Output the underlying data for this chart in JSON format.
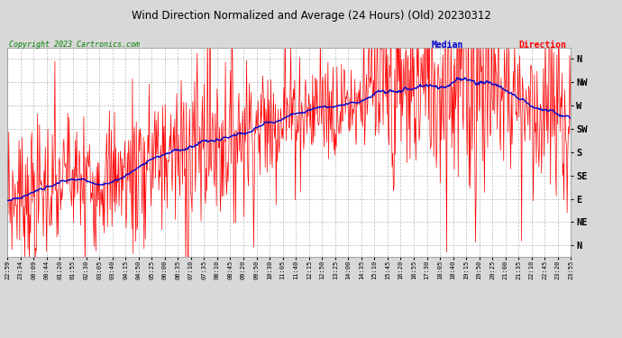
{
  "title": "Wind Direction Normalized and Average (24 Hours) (Old) 20230312",
  "copyright": "Copyright 2023 Cartronics.com",
  "legend_median": "Median",
  "legend_direction": "Direction",
  "bg_color": "#d8d8d8",
  "plot_bg_color": "#ffffff",
  "direction_color": "#ff0000",
  "median_color": "#0000cc",
  "title_color": "#000000",
  "copyright_color": "#008000",
  "legend_median_color": "#0000cc",
  "legend_direction_color": "#ff0000",
  "ytick_labels": [
    "N",
    "NE",
    "E",
    "SE",
    "S",
    "SW",
    "W",
    "NW",
    "N"
  ],
  "ytick_values": [
    0,
    45,
    90,
    135,
    180,
    225,
    270,
    315,
    360
  ],
  "ylim": [
    -22,
    382
  ],
  "xtick_labels": [
    "22:59",
    "23:34",
    "00:09",
    "00:44",
    "01:20",
    "01:55",
    "02:30",
    "03:05",
    "03:40",
    "04:15",
    "04:50",
    "05:25",
    "06:00",
    "06:35",
    "07:10",
    "07:35",
    "08:10",
    "08:45",
    "09:20",
    "09:50",
    "10:30",
    "11:05",
    "11:40",
    "12:15",
    "12:50",
    "13:25",
    "14:00",
    "14:35",
    "15:10",
    "15:45",
    "16:20",
    "16:55",
    "17:30",
    "18:05",
    "18:40",
    "19:15",
    "19:50",
    "20:25",
    "21:00",
    "21:35",
    "22:10",
    "22:45",
    "23:20",
    "23:55"
  ],
  "num_points": 880,
  "seed": 7
}
